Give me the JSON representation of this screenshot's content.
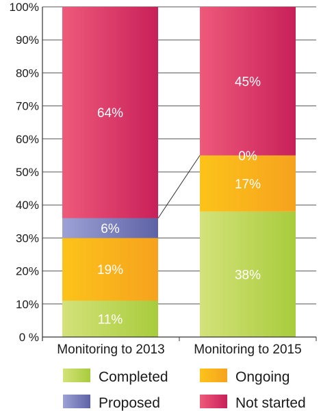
{
  "chart_data": {
    "type": "bar",
    "stacked": true,
    "categories": [
      "Monitoring to 2013",
      "Monitoring to 2015"
    ],
    "series": [
      {
        "name": "Completed",
        "values": [
          11,
          38
        ],
        "labels": [
          "11%",
          "38%"
        ],
        "color": "#a8cc3c",
        "color_light": "#d4e27a"
      },
      {
        "name": "Ongoing",
        "values": [
          19,
          17
        ],
        "labels": [
          "19%",
          "17%"
        ],
        "color": "#f6a21e",
        "color_light": "#fcc31a"
      },
      {
        "name": "Proposed",
        "values": [
          6,
          0
        ],
        "labels": [
          "6%",
          "0%"
        ],
        "color": "#5d62a6",
        "color_light": "#9da2d6"
      },
      {
        "name": "Not started",
        "values": [
          64,
          45
        ],
        "labels": [
          "64%",
          "45%"
        ],
        "color": "#c8205a",
        "color_light": "#ee5a7a"
      }
    ],
    "yticks": [
      "0 %",
      "10%",
      "20%",
      "30%",
      "40%",
      "50%",
      "60%",
      "70%",
      "80%",
      "90%",
      "100%"
    ],
    "ylim": [
      0,
      100
    ],
    "grid": true,
    "legend": "bottom",
    "connector": {
      "from_series": "Proposed",
      "note": "line joins top of Proposed segment across bars"
    }
  }
}
